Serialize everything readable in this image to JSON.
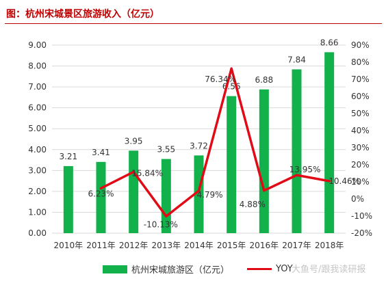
{
  "title": "图：杭州宋城景区旅游收入（亿元）",
  "watermark": "大鱼号/跟我读研报",
  "colors": {
    "bar": "#12b14b",
    "line": "#e10b17",
    "title": "#c00000",
    "grid": "#d9d9d9",
    "text": "#333333"
  },
  "chart_data": {
    "type": "bar",
    "categories": [
      "2010年",
      "2011年",
      "2012年",
      "2013年",
      "2014年",
      "2015年",
      "2016年",
      "2017年",
      "2018年"
    ],
    "series": [
      {
        "name": "杭州宋城旅游区（亿元）",
        "type": "bar",
        "axis": "left",
        "values": [
          3.21,
          3.41,
          3.95,
          3.55,
          3.72,
          6.56,
          6.88,
          7.84,
          8.66
        ],
        "labels": [
          "3.21",
          "3.41",
          "3.95",
          "3.55",
          "3.72",
          "6.56",
          "6.88",
          "7.84",
          "8.66"
        ]
      },
      {
        "name": "YOY",
        "type": "line",
        "axis": "right",
        "values": [
          null,
          6.23,
          15.84,
          -10.13,
          4.79,
          76.34,
          4.88,
          13.95,
          10.46
        ],
        "labels": [
          null,
          "6.23%",
          "15.84%",
          "-10.13%",
          "4.79%",
          "76.34%",
          "4.88%",
          "13.95%",
          "10.46%"
        ]
      }
    ],
    "y_left": {
      "min": 0,
      "max": 9,
      "step": 1,
      "ticks": [
        "0.00",
        "1.00",
        "2.00",
        "3.00",
        "4.00",
        "5.00",
        "6.00",
        "7.00",
        "8.00",
        "9.00"
      ]
    },
    "y_right": {
      "min": -20,
      "max": 90,
      "step": 10,
      "ticks": [
        "-20%",
        "-10%",
        "0%",
        "10%",
        "20%",
        "30%",
        "40%",
        "50%",
        "60%",
        "70%",
        "80%",
        "90%"
      ]
    },
    "grid": true,
    "legend": "bottom"
  }
}
